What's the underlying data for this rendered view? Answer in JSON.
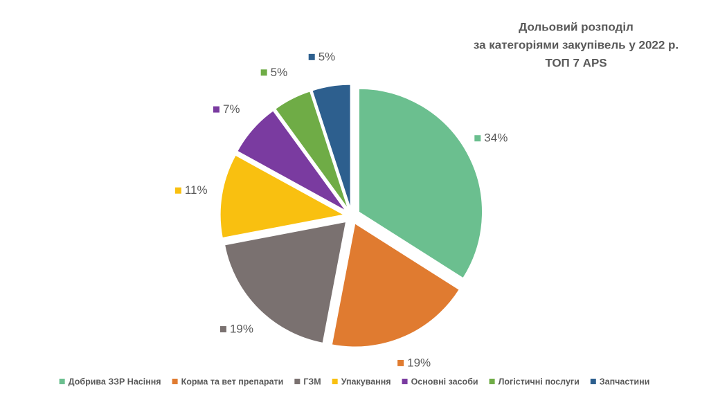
{
  "chart_data": {
    "type": "pie",
    "title": [
      "Дольовий розподіл",
      "за категоріями закупівель у 2022 р.",
      "ТОП 7 APS"
    ],
    "categories": [
      "Добрива ЗЗР Насіння",
      "Корма та вет препарати",
      "ГЗМ",
      "Упакування",
      "Основні засоби",
      "Логістичні послуги",
      "Запчастини"
    ],
    "values": [
      34,
      19,
      19,
      11,
      7,
      5,
      5
    ],
    "value_labels": [
      "34%",
      "19%",
      "19%",
      "11%",
      "7%",
      "5%",
      "5%"
    ],
    "colors": [
      "#6bbf8f",
      "#e07b30",
      "#7a7170",
      "#f9c010",
      "#7a3ba0",
      "#6fac46",
      "#2d5f8e"
    ],
    "legend": "bottom"
  }
}
